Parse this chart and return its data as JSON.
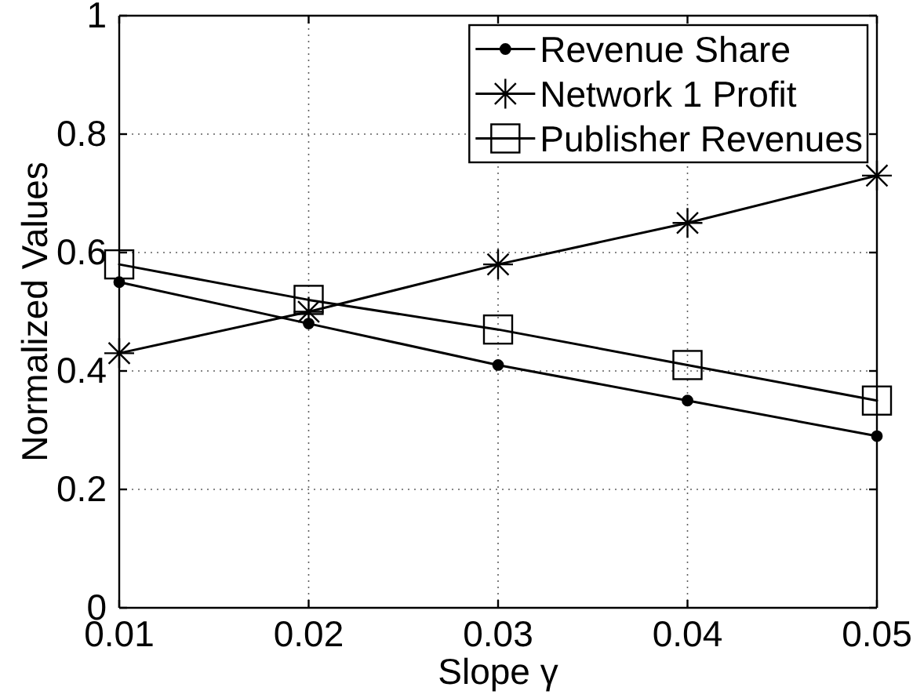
{
  "chart_data": {
    "type": "line",
    "xlabel": "Slope γ",
    "ylabel": "Normalized Values",
    "x": [
      0.01,
      0.02,
      0.03,
      0.04,
      0.05
    ],
    "xlim": [
      0.01,
      0.05
    ],
    "xticks": [
      0.01,
      0.02,
      0.03,
      0.04,
      0.05
    ],
    "ylim": [
      0,
      1
    ],
    "yticks": [
      0,
      0.2,
      0.4,
      0.6,
      0.8,
      1
    ],
    "grid": true,
    "legend": "top right",
    "line_style": "solid",
    "series": [
      {
        "name": "Revenue Share",
        "color": "#000000",
        "marker": "circle",
        "values": [
          0.55,
          0.48,
          0.41,
          0.35,
          0.29
        ]
      },
      {
        "name": "Network 1 Profit",
        "color": "#000000",
        "marker": "cross",
        "values": [
          0.43,
          0.5,
          0.58,
          0.65,
          0.73
        ]
      },
      {
        "name": "Publisher Revenues",
        "color": "#000000",
        "marker": "square",
        "values": [
          0.58,
          0.52,
          0.47,
          0.41,
          0.35
        ]
      }
    ]
  }
}
